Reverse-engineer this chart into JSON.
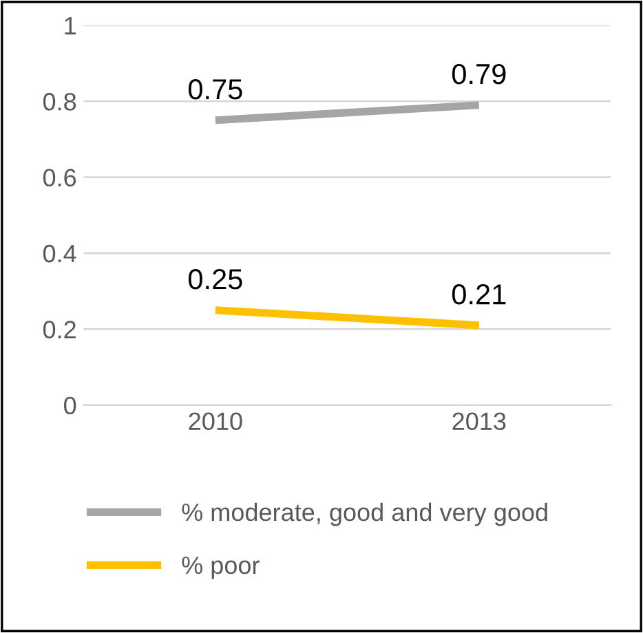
{
  "chart_data": {
    "type": "line",
    "categories": [
      "2010",
      "2013"
    ],
    "series": [
      {
        "name": "% moderate, good and very good",
        "color": "#a5a5a5",
        "values": [
          0.75,
          0.79
        ]
      },
      {
        "name": "% poor",
        "color": "#ffc000",
        "values": [
          0.25,
          0.21
        ]
      }
    ],
    "ylim": [
      0,
      1
    ],
    "yticks": [
      0,
      0.2,
      0.4,
      0.6,
      0.8,
      1
    ],
    "grid": "y",
    "legend": "bottom",
    "data_labels": true,
    "marker": "none",
    "line_style": "solid"
  }
}
